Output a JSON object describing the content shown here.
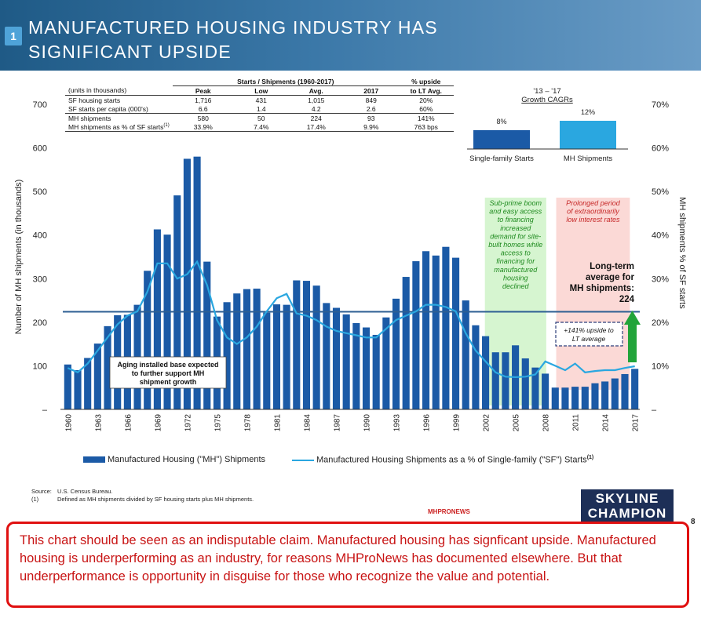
{
  "header": {
    "slide_number": "1",
    "title": "MANUFACTURED HOUSING INDUSTRY HAS SIGNIFICANT UPSIDE",
    "page_number": "8"
  },
  "stats_table": {
    "group_header": "Starts / Shipments (1960-2017)",
    "upside_header": "% upside",
    "columns": [
      "(units in thousands)",
      "Peak",
      "Low",
      "Avg.",
      "2017",
      "to LT Avg."
    ],
    "rows": [
      [
        "SF housing starts",
        "1,716",
        "431",
        "1,015",
        "849",
        "20%"
      ],
      [
        "SF starts per capita (000's)",
        "6.6",
        "1.4",
        "4.2",
        "2.6",
        "60%"
      ],
      [
        "MH shipments",
        "580",
        "50",
        "224",
        "93",
        "141%"
      ],
      [
        "MH shipments as % of SF starts",
        "33.9%",
        "7.4%",
        "17.4%",
        "9.9%",
        "763 bps"
      ]
    ],
    "footnote_mark": "(1)"
  },
  "cagr": {
    "title_line1": "'13 – '17",
    "title_line2": "Growth CAGRs",
    "bars": [
      {
        "label": "Single-family Starts",
        "value": 8,
        "value_label": "8%",
        "color": "#1b5aa6"
      },
      {
        "label": "MH Shipments",
        "value": 12,
        "value_label": "12%",
        "color": "#2aa7e0"
      }
    ]
  },
  "chart_data": {
    "type": "bar",
    "categories": [
      1960,
      1961,
      1962,
      1963,
      1964,
      1965,
      1966,
      1967,
      1968,
      1969,
      1970,
      1971,
      1972,
      1973,
      1974,
      1975,
      1976,
      1977,
      1978,
      1979,
      1980,
      1981,
      1982,
      1983,
      1984,
      1985,
      1986,
      1987,
      1988,
      1989,
      1990,
      1991,
      1992,
      1993,
      1994,
      1995,
      1996,
      1997,
      1998,
      1999,
      2000,
      2001,
      2002,
      2003,
      2004,
      2005,
      2006,
      2007,
      2008,
      2009,
      2010,
      2011,
      2012,
      2013,
      2014,
      2015,
      2016,
      2017
    ],
    "x_tick_labels": [
      "1960",
      "1963",
      "1966",
      "1969",
      "1972",
      "1975",
      "1978",
      "1981",
      "1984",
      "1987",
      "1990",
      "1993",
      "1996",
      "1999",
      "2002",
      "2005",
      "2008",
      "2011",
      "2014",
      "2017"
    ],
    "series": [
      {
        "name": "Manufactured Housing (\"MH\") Shipments",
        "axis": "left",
        "color": "#1b5aa6",
        "values": [
          103,
          90,
          118,
          151,
          191,
          216,
          217,
          240,
          318,
          413,
          401,
          491,
          575,
          580,
          339,
          213,
          246,
          266,
          276,
          277,
          222,
          241,
          240,
          296,
          295,
          284,
          244,
          233,
          218,
          198,
          188,
          171,
          211,
          254,
          304,
          340,
          363,
          353,
          373,
          348,
          250,
          193,
          168,
          131,
          131,
          147,
          117,
          96,
          82,
          50,
          50,
          52,
          52,
          60,
          64,
          71,
          81,
          93
        ]
      },
      {
        "name": "Manufactured Housing Shipments as a % of Single-family (\"SF\") Starts",
        "axis": "right",
        "color": "#2aa7e0",
        "values": [
          9.5,
          8.5,
          10.5,
          13.5,
          16.5,
          19.5,
          21.5,
          22.5,
          27,
          33.5,
          33.5,
          30,
          31,
          33.9,
          28.5,
          20.5,
          16.5,
          15,
          16.5,
          19,
          22.5,
          25.5,
          26.5,
          22,
          21.5,
          20.5,
          19,
          18,
          17.5,
          17,
          16.5,
          16.5,
          18.5,
          20.5,
          21.5,
          22.5,
          24,
          24,
          23.5,
          22.5,
          17.5,
          13.5,
          11,
          8.5,
          7.5,
          7.4,
          7.5,
          8,
          11,
          10,
          9,
          10.5,
          8.5,
          8.8,
          9,
          9,
          9.5,
          9.9
        ]
      }
    ],
    "long_term_average": 224,
    "ylabel": "Number of MH shipments (in thousands)",
    "y2label": "MH shipments % of SF starts",
    "ylim": [
      0,
      700
    ],
    "y_ticks": [
      "–",
      "100",
      "200",
      "300",
      "400",
      "500",
      "600",
      "700"
    ],
    "y2lim": [
      0,
      70
    ],
    "y2_ticks": [
      "–",
      "10%",
      "20%",
      "30%",
      "40%",
      "50%",
      "60%",
      "70%"
    ],
    "grid": false,
    "legend_position": "bottom",
    "annotations": {
      "aging": "Aging installed base expected to further support MH shipment growth",
      "subprime": "Sub-prime boom and easy access to financing increased demand for site-built homes while access to financing for manufactured housing declined",
      "prolonged": "Prolonged period of extraordinarily low interest rates",
      "lt_avg": "Long-term average for MH shipments: 224",
      "upside": "+141% upside to LT average"
    }
  },
  "legend": {
    "bar_label": "Manufactured Housing (\"MH\") Shipments",
    "line_label": "Manufactured Housing Shipments as a % of Single-family (\"SF\") Starts",
    "line_mark": "(1)"
  },
  "footer": {
    "source_key": "Source:",
    "source_text": "U.S. Census Bureau.",
    "note_key": "(1)",
    "note_text": "Defined as MH shipments divided by SF housing starts plus MH shipments.",
    "mhpro_logo": "MHPRONEWS",
    "skyline_line1": "SKYLINE",
    "skyline_line2": "CHAMPION"
  },
  "note_box": {
    "text": "This chart should be seen as an indisputable claim.  Manufactured housing has signficant upside.  Manufactured housing is underperforming as an industry, for reasons MHProNews has documented elsewhere.  But that underperformance is opportunity in disguise for those who recognize the value and potential."
  }
}
